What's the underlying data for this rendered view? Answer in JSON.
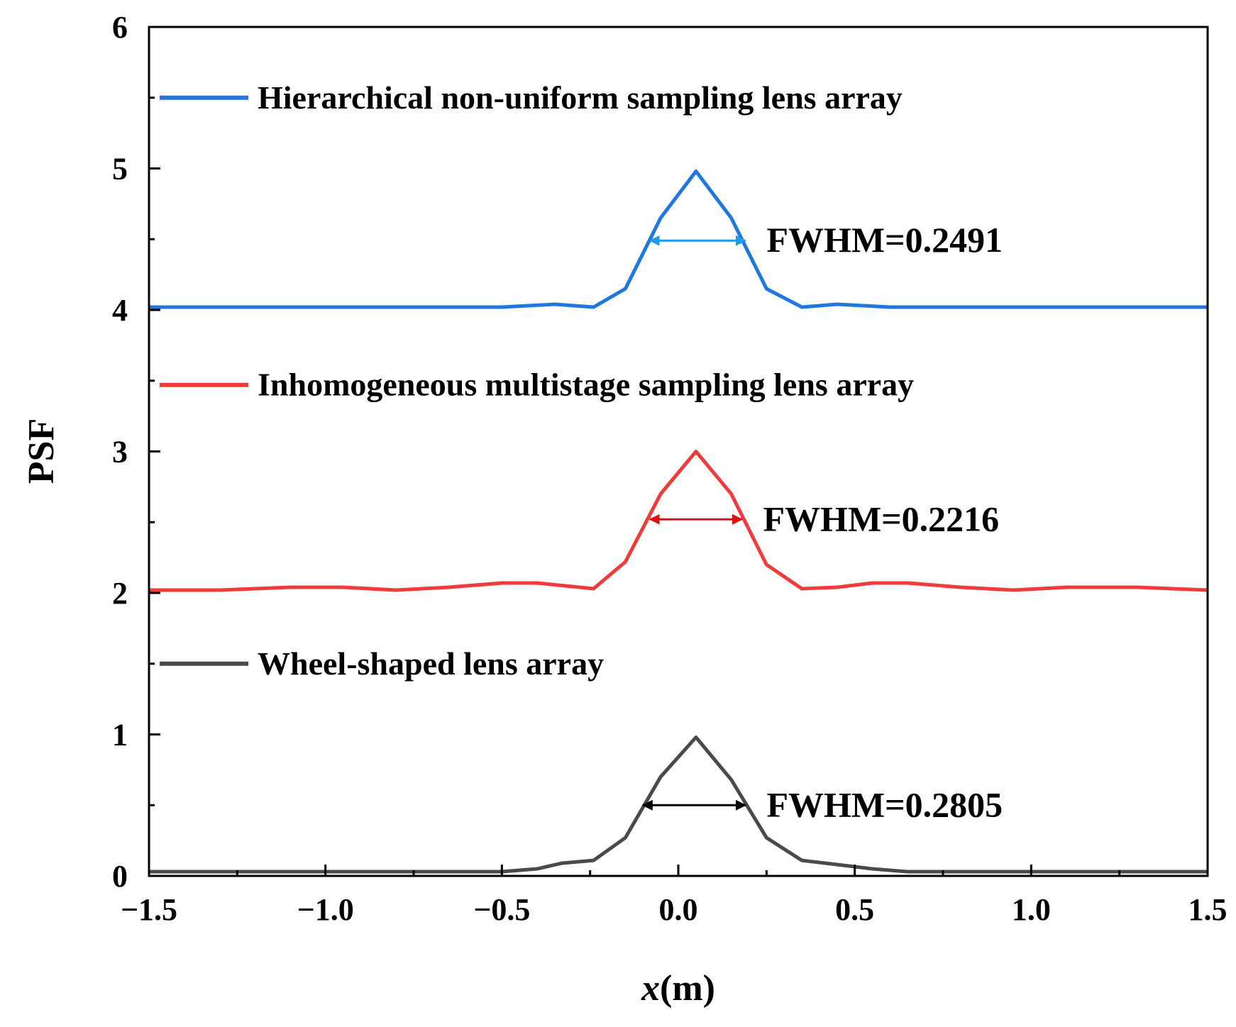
{
  "chart_data": {
    "type": "line",
    "title": "",
    "xlabel_var": "x",
    "xlabel_unit": "(m)",
    "ylabel": "PSF",
    "xlim": [
      -1.5,
      1.5
    ],
    "ylim": [
      0,
      6
    ],
    "xticks": [
      -1.5,
      -1.0,
      -0.5,
      0.0,
      0.5,
      1.0,
      1.5
    ],
    "xtick_labels": [
      "−1.5",
      "−1.0",
      "−0.5",
      "0.0",
      "0.5",
      "1.0",
      "1.5"
    ],
    "yticks": [
      0,
      1,
      2,
      3,
      4,
      5,
      6
    ],
    "ytick_labels": [
      "0",
      "1",
      "2",
      "3",
      "4",
      "5",
      "6"
    ],
    "legend_position": "inside, left of each curve",
    "series": [
      {
        "name": "Hierarchical non-uniform sampling lens array",
        "color": "#1f77e0",
        "x": [
          -1.5,
          -1.25,
          -1.0,
          -0.75,
          -0.5,
          -0.35,
          -0.24,
          -0.15,
          -0.05,
          0.05,
          0.15,
          0.25,
          0.35,
          0.45,
          0.6,
          0.8,
          1.0,
          1.25,
          1.5
        ],
        "y": [
          4.02,
          4.02,
          4.02,
          4.02,
          4.02,
          4.04,
          4.02,
          4.15,
          4.65,
          4.98,
          4.65,
          4.15,
          4.02,
          4.04,
          4.02,
          4.02,
          4.02,
          4.02,
          4.02
        ]
      },
      {
        "name": "Inhomogeneous multistage sampling lens array",
        "color": "#ef3b3b",
        "x": [
          -1.5,
          -1.3,
          -1.1,
          -0.95,
          -0.8,
          -0.65,
          -0.5,
          -0.4,
          -0.24,
          -0.15,
          -0.05,
          0.05,
          0.15,
          0.25,
          0.35,
          0.45,
          0.55,
          0.65,
          0.8,
          0.95,
          1.1,
          1.3,
          1.5
        ],
        "y": [
          2.02,
          2.02,
          2.04,
          2.04,
          2.02,
          2.04,
          2.07,
          2.07,
          2.03,
          2.22,
          2.7,
          3.0,
          2.7,
          2.2,
          2.03,
          2.04,
          2.07,
          2.07,
          2.04,
          2.02,
          2.04,
          2.04,
          2.02
        ]
      },
      {
        "name": "Wheel-shaped lens array",
        "color": "#4a4a4a",
        "x": [
          -1.5,
          -1.2,
          -0.9,
          -0.6,
          -0.5,
          -0.4,
          -0.33,
          -0.24,
          -0.15,
          -0.05,
          0.05,
          0.15,
          0.25,
          0.35,
          0.45,
          0.55,
          0.65,
          0.8,
          1.0,
          1.25,
          1.5
        ],
        "y": [
          0.03,
          0.03,
          0.03,
          0.03,
          0.03,
          0.05,
          0.09,
          0.11,
          0.27,
          0.7,
          0.98,
          0.68,
          0.27,
          0.11,
          0.08,
          0.05,
          0.03,
          0.03,
          0.03,
          0.03,
          0.03
        ]
      }
    ],
    "annotations": [
      {
        "text": "FWHM=0.2491",
        "arrow_color": "#1e9be8",
        "x_start": -0.08,
        "x_end": 0.19,
        "y": 4.49
      },
      {
        "text": "FWHM=0.2216",
        "arrow_color": "#e01010",
        "x_start": -0.08,
        "x_end": 0.18,
        "y": 2.52
      },
      {
        "text": "FWHM=0.2805",
        "arrow_color": "#000000",
        "x_start": -0.1,
        "x_end": 0.19,
        "y": 0.5
      }
    ]
  }
}
